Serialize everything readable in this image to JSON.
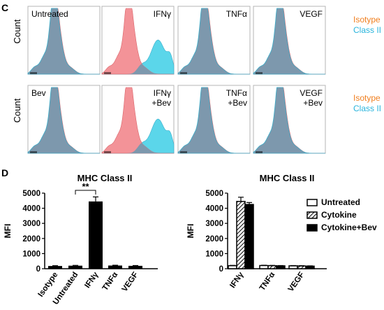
{
  "panel_c": {
    "letter": "C",
    "y_label": "Count",
    "legend": {
      "isotype": "Isotype",
      "class2": "Class II"
    },
    "rows": [
      [
        {
          "label_lines": [
            "Untreated"
          ]
        },
        {
          "label_lines": [
            "IFNγ"
          ]
        },
        {
          "label_lines": [
            "TNFα"
          ]
        },
        {
          "label_lines": [
            "VEGF"
          ]
        }
      ],
      [
        {
          "label_lines": [
            "Bev"
          ]
        },
        {
          "label_lines": [
            "IFNγ",
            "+Bev"
          ]
        },
        {
          "label_lines": [
            "TNFα",
            "+Bev"
          ]
        },
        {
          "label_lines": [
            "VEGF",
            "+Bev"
          ]
        }
      ]
    ]
  },
  "panel_d": {
    "letter": "D"
  },
  "colors": {
    "isotype": "#f28a8f",
    "class2": "#5bd6ea",
    "overlap": "#7d98ad",
    "isotype_text": "#f07f1f",
    "class2_text": "#28b4dc"
  },
  "chart_data": [
    {
      "type": "area",
      "title": "",
      "xlabel": "",
      "ylabel": "Count",
      "panels": [
        {
          "label": "Untreated",
          "shift": false
        },
        {
          "label": "IFNγ",
          "shift": true
        },
        {
          "label": "TNFα",
          "shift": false
        },
        {
          "label": "VEGF",
          "shift": false
        },
        {
          "label": "Bev",
          "shift": false
        },
        {
          "label": "IFNγ +Bev",
          "shift": true
        },
        {
          "label": "TNFα +Bev",
          "shift": false
        },
        {
          "label": "VEGF +Bev",
          "shift": false
        }
      ],
      "series": [
        {
          "name": "Isotype",
          "color": "#f28a8f"
        },
        {
          "name": "Class II",
          "color": "#5bd6ea"
        }
      ]
    },
    {
      "type": "bar",
      "title": "MHC Class II",
      "ylabel": "MFI",
      "categories": [
        "Isotype",
        "Untreated",
        "IFNγ",
        "TNFα",
        "VEGF"
      ],
      "values": [
        180,
        200,
        4450,
        210,
        190
      ],
      "errors": [
        20,
        20,
        300,
        20,
        20
      ],
      "ylim": [
        0,
        5000
      ],
      "yticks": [
        0,
        1000,
        2000,
        3000,
        4000,
        5000
      ],
      "annotation": {
        "text": "**",
        "from": "Untreated",
        "to": "IFNγ"
      }
    },
    {
      "type": "bar",
      "title": "MHC Class II",
      "ylabel": "MFI",
      "categories": [
        "IFNγ",
        "TNFα",
        "VEGF"
      ],
      "ylim": [
        0,
        5000
      ],
      "yticks": [
        0,
        1000,
        2000,
        3000,
        4000,
        5000
      ],
      "legend_position": "top-right",
      "series": [
        {
          "name": "Untreated",
          "pattern": "open",
          "values": [
            200,
            210,
            190
          ],
          "errors": [
            20,
            20,
            20
          ]
        },
        {
          "name": "Cytokine",
          "pattern": "hatched",
          "values": [
            4450,
            200,
            180
          ],
          "errors": [
            280,
            20,
            20
          ]
        },
        {
          "name": "Cytokine+Bev",
          "pattern": "solid",
          "values": [
            4250,
            190,
            170
          ],
          "errors": [
            130,
            20,
            20
          ]
        }
      ]
    }
  ]
}
